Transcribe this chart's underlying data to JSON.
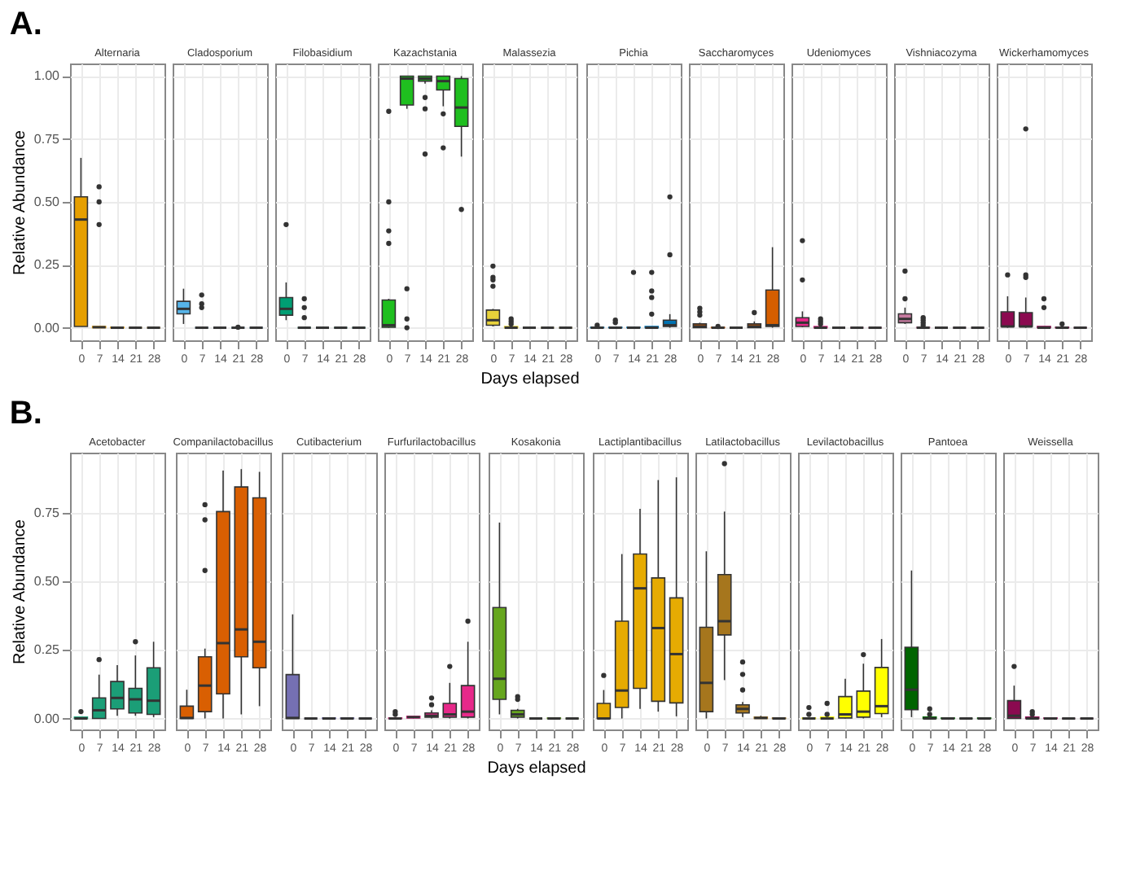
{
  "chart_data": [
    {
      "type": "box",
      "title": "Alternaria",
      "annotations": [
        "A."
      ],
      "ylabel": "Relative Abundance",
      "categories": [
        "0",
        "7",
        "14",
        "21",
        "28"
      ],
      "ylim": [
        -0.05,
        1.05
      ],
      "yticks": [
        {
          "value": 0,
          "label": "0.00"
        },
        {
          "value": 0.25,
          "label": "0.25"
        },
        {
          "value": 0.5,
          "label": "0.50"
        },
        {
          "value": 0.75,
          "label": "0.75"
        },
        {
          "value": 1,
          "label": "1.00"
        }
      ],
      "grid": true,
      "series": [
        {
          "color": "#e69f00",
          "boxes": [
            {
              "low": 0.005,
              "q1": 0.005,
              "median": 0.43,
              "q3": 0.52,
              "high": 0.675
            },
            {
              "low": 0,
              "q1": 0,
              "median": 0.002,
              "q3": 0.005,
              "high": 0.005,
              "outliers": [
                0.56,
                0.5,
                0.41
              ]
            },
            {
              "low": 0,
              "q1": 0,
              "median": 0,
              "q3": 0.002,
              "high": 0.002
            },
            {
              "low": 0,
              "q1": 0,
              "median": 0,
              "q3": 0,
              "high": 0
            },
            {
              "low": 0,
              "q1": 0,
              "median": 0,
              "q3": 0,
              "high": 0
            }
          ]
        }
      ]
    },
    {
      "type": "box",
      "title": "Cladosporium",
      "tick_labels": "x",
      "categories": [
        "0",
        "7",
        "14",
        "21",
        "28"
      ],
      "ylim": [
        -0.05,
        1.05
      ],
      "grid": true,
      "series": [
        {
          "color": "#56b4e9",
          "boxes": [
            {
              "low": 0.015,
              "q1": 0.055,
              "median": 0.075,
              "q3": 0.105,
              "high": 0.155
            },
            {
              "low": 0,
              "q1": 0,
              "median": 0,
              "q3": 0,
              "high": 0,
              "outliers": [
                0.13,
                0.095,
                0.08
              ]
            },
            {
              "low": 0,
              "q1": 0,
              "median": 0,
              "q3": 0,
              "high": 0
            },
            {
              "low": 0,
              "q1": 0,
              "median": 0,
              "q3": 0,
              "high": 0,
              "outliers": [
                0.002
              ]
            },
            {
              "low": 0,
              "q1": 0,
              "median": 0,
              "q3": 0,
              "high": 0
            }
          ]
        }
      ]
    },
    {
      "type": "box",
      "title": "Filobasidium",
      "tick_labels": "x",
      "categories": [
        "0",
        "7",
        "14",
        "21",
        "28"
      ],
      "ylim": [
        -0.05,
        1.05
      ],
      "grid": true,
      "series": [
        {
          "color": "#009e73",
          "boxes": [
            {
              "low": 0.03,
              "q1": 0.05,
              "median": 0.075,
              "q3": 0.12,
              "high": 0.18,
              "outliers": [
                0.41
              ]
            },
            {
              "low": 0,
              "q1": 0,
              "median": 0,
              "q3": 0,
              "high": 0,
              "outliers": [
                0.115,
                0.08,
                0.04
              ]
            },
            {
              "low": 0,
              "q1": 0,
              "median": 0,
              "q3": 0,
              "high": 0
            },
            {
              "low": 0,
              "q1": 0,
              "median": 0,
              "q3": 0,
              "high": 0
            },
            {
              "low": 0,
              "q1": 0,
              "median": 0,
              "q3": 0,
              "high": 0
            }
          ]
        }
      ]
    },
    {
      "type": "box",
      "title": "Kazachstania",
      "tick_labels": "x",
      "categories": [
        "0",
        "7",
        "14",
        "21",
        "28"
      ],
      "ylim": [
        -0.05,
        1.05
      ],
      "grid": true,
      "series": [
        {
          "color": "#1fbf1f",
          "boxes": [
            {
              "low": 0,
              "q1": 0.002,
              "median": 0.01,
              "q3": 0.11,
              "high": 0.115,
              "outliers": [
                0.86,
                0.5,
                0.385,
                0.335
              ]
            },
            {
              "low": 0.87,
              "q1": 0.885,
              "median": 0.99,
              "q3": 1.0,
              "high": 1.0,
              "outliers": [
                0.155,
                0.035,
                0.0
              ]
            },
            {
              "low": 0.97,
              "q1": 0.98,
              "median": 0.99,
              "q3": 1.0,
              "high": 1.0,
              "outliers": [
                0.915,
                0.87,
                0.69
              ]
            },
            {
              "low": 0.88,
              "q1": 0.945,
              "median": 0.98,
              "q3": 1.0,
              "high": 1.0,
              "outliers": [
                0.85,
                0.715
              ]
            },
            {
              "low": 0.68,
              "q1": 0.8,
              "median": 0.875,
              "q3": 0.99,
              "high": 1.0,
              "outliers": [
                0.47
              ]
            }
          ]
        }
      ]
    },
    {
      "type": "box",
      "title": "Malassezia",
      "xlabel": "Days elapsed",
      "tick_labels": "x",
      "categories": [
        "0",
        "7",
        "14",
        "21",
        "28"
      ],
      "ylim": [
        -0.05,
        1.05
      ],
      "grid": true,
      "series": [
        {
          "color": "#e8d23a",
          "boxes": [
            {
              "low": 0.005,
              "q1": 0.01,
              "median": 0.03,
              "q3": 0.07,
              "high": 0.075,
              "outliers": [
                0.245,
                0.2,
                0.19,
                0.165
              ]
            },
            {
              "low": 0,
              "q1": 0,
              "median": 0,
              "q3": 0.005,
              "high": 0.005,
              "outliers": [
                0.035,
                0.025,
                0.015
              ]
            },
            {
              "low": 0,
              "q1": 0,
              "median": 0,
              "q3": 0,
              "high": 0
            },
            {
              "low": 0,
              "q1": 0,
              "median": 0,
              "q3": 0,
              "high": 0
            },
            {
              "low": 0,
              "q1": 0,
              "median": 0,
              "q3": 0,
              "high": 0
            }
          ]
        }
      ]
    },
    {
      "type": "box",
      "title": "Pichia",
      "tick_labels": "x",
      "categories": [
        "0",
        "7",
        "14",
        "21",
        "28"
      ],
      "ylim": [
        -0.05,
        1.05
      ],
      "grid": true,
      "series": [
        {
          "color": "#0072b2",
          "boxes": [
            {
              "low": 0,
              "q1": 0,
              "median": 0,
              "q3": 0.002,
              "high": 0.002,
              "outliers": [
                0.01
              ]
            },
            {
              "low": 0,
              "q1": 0,
              "median": 0,
              "q3": 0.002,
              "high": 0.002,
              "outliers": [
                0.03,
                0.02
              ]
            },
            {
              "low": 0,
              "q1": 0,
              "median": 0,
              "q3": 0.002,
              "high": 0.002,
              "outliers": [
                0.22
              ]
            },
            {
              "low": 0,
              "q1": 0,
              "median": 0,
              "q3": 0.005,
              "high": 0.005,
              "outliers": [
                0.22,
                0.146,
                0.12,
                0.054
              ]
            },
            {
              "low": 0,
              "q1": 0.005,
              "median": 0.01,
              "q3": 0.03,
              "high": 0.054,
              "outliers": [
                0.52,
                0.29
              ]
            }
          ]
        }
      ]
    },
    {
      "type": "box",
      "title": "Saccharomyces",
      "tick_labels": "x",
      "categories": [
        "0",
        "7",
        "14",
        "21",
        "28"
      ],
      "ylim": [
        -0.05,
        1.05
      ],
      "grid": true,
      "series": [
        {
          "color": "#d55e00",
          "boxes": [
            {
              "low": 0,
              "q1": 0,
              "median": 0.005,
              "q3": 0.015,
              "high": 0.02,
              "outliers": [
                0.077,
                0.063,
                0.05
              ]
            },
            {
              "low": 0,
              "q1": 0,
              "median": 0,
              "q3": 0.002,
              "high": 0.002,
              "outliers": [
                0.005
              ]
            },
            {
              "low": 0,
              "q1": 0,
              "median": 0,
              "q3": 0,
              "high": 0
            },
            {
              "low": 0,
              "q1": 0,
              "median": 0.005,
              "q3": 0.015,
              "high": 0.025,
              "outliers": [
                0.06
              ]
            },
            {
              "low": 0,
              "q1": 0.005,
              "median": 0.01,
              "q3": 0.15,
              "high": 0.32
            }
          ]
        }
      ]
    },
    {
      "type": "box",
      "title": "Udeniomyces",
      "tick_labels": "x",
      "categories": [
        "0",
        "7",
        "14",
        "21",
        "28"
      ],
      "ylim": [
        -0.05,
        1.05
      ],
      "grid": true,
      "series": [
        {
          "color": "#e7298a",
          "boxes": [
            {
              "low": 0.002,
              "q1": 0.005,
              "median": 0.02,
              "q3": 0.04,
              "high": 0.065,
              "outliers": [
                0.346,
                0.19
              ]
            },
            {
              "low": 0,
              "q1": 0,
              "median": 0,
              "q3": 0.005,
              "high": 0.005,
              "outliers": [
                0.035,
                0.025,
                0.015
              ]
            },
            {
              "low": 0,
              "q1": 0,
              "median": 0,
              "q3": 0,
              "high": 0
            },
            {
              "low": 0,
              "q1": 0,
              "median": 0,
              "q3": 0,
              "high": 0
            },
            {
              "low": 0,
              "q1": 0,
              "median": 0,
              "q3": 0,
              "high": 0
            }
          ]
        }
      ]
    },
    {
      "type": "box",
      "title": "Vishniacozyma",
      "tick_labels": "x",
      "categories": [
        "0",
        "7",
        "14",
        "21",
        "28"
      ],
      "ylim": [
        -0.05,
        1.05
      ],
      "grid": true,
      "series": [
        {
          "color": "#c77ba0",
          "boxes": [
            {
              "low": 0.015,
              "q1": 0.02,
              "median": 0.035,
              "q3": 0.055,
              "high": 0.08,
              "outliers": [
                0.225,
                0.115
              ]
            },
            {
              "low": 0,
              "q1": 0,
              "median": 0,
              "q3": 0.002,
              "high": 0.002,
              "outliers": [
                0.04,
                0.03,
                0.02,
                0.01
              ]
            },
            {
              "low": 0,
              "q1": 0,
              "median": 0,
              "q3": 0,
              "high": 0
            },
            {
              "low": 0,
              "q1": 0,
              "median": 0,
              "q3": 0,
              "high": 0
            },
            {
              "low": 0,
              "q1": 0,
              "median": 0,
              "q3": 0,
              "high": 0
            }
          ]
        }
      ]
    },
    {
      "type": "box",
      "title": "Wickerhamomyces",
      "tick_labels": "x",
      "categories": [
        "0",
        "7",
        "14",
        "21",
        "28"
      ],
      "ylim": [
        -0.05,
        1.05
      ],
      "grid": true,
      "series": [
        {
          "color": "#8b0a50",
          "boxes": [
            {
              "low": 0,
              "q1": 0.005,
              "median": 0.005,
              "q3": 0.063,
              "high": 0.125,
              "outliers": [
                0.21
              ]
            },
            {
              "low": 0,
              "q1": 0.005,
              "median": 0.005,
              "q3": 0.06,
              "high": 0.12,
              "outliers": [
                0.79,
                0.21,
                0.2
              ]
            },
            {
              "low": 0,
              "q1": 0,
              "median": 0,
              "q3": 0.005,
              "high": 0.005,
              "outliers": [
                0.115,
                0.08
              ]
            },
            {
              "low": 0,
              "q1": 0,
              "median": 0,
              "q3": 0.002,
              "high": 0.002,
              "outliers": [
                0.015
              ]
            },
            {
              "low": 0,
              "q1": 0,
              "median": 0,
              "q3": 0,
              "high": 0
            }
          ]
        }
      ]
    },
    {
      "type": "box",
      "title": "Acetobacter",
      "annotations": [
        "B."
      ],
      "ylabel": "Relative Abundance",
      "categories": [
        "0",
        "7",
        "14",
        "21",
        "28"
      ],
      "ylim": [
        -0.04,
        0.97
      ],
      "yticks": [
        {
          "value": 0,
          "label": "0.00"
        },
        {
          "value": 0.25,
          "label": "0.25"
        },
        {
          "value": 0.5,
          "label": "0.50"
        },
        {
          "value": 0.75,
          "label": "0.75"
        }
      ],
      "grid": true,
      "series": [
        {
          "color": "#1b9e77",
          "boxes": [
            {
              "low": 0,
              "q1": 0,
              "median": 0,
              "q3": 0.005,
              "high": 0.005,
              "outliers": [
                0.025
              ]
            },
            {
              "low": 0,
              "q1": 0,
              "median": 0.03,
              "q3": 0.075,
              "high": 0.16,
              "outliers": [
                0.215
              ]
            },
            {
              "low": 0.01,
              "q1": 0.035,
              "median": 0.075,
              "q3": 0.135,
              "high": 0.195
            },
            {
              "low": 0.01,
              "q1": 0.02,
              "median": 0.07,
              "q3": 0.11,
              "high": 0.23,
              "outliers": [
                0.28
              ]
            },
            {
              "low": 0.005,
              "q1": 0.015,
              "median": 0.065,
              "q3": 0.185,
              "high": 0.28
            }
          ]
        }
      ]
    },
    {
      "type": "box",
      "title": "Companilactobacillus",
      "tick_labels": "x",
      "categories": [
        "0",
        "7",
        "14",
        "21",
        "28"
      ],
      "ylim": [
        -0.04,
        0.97
      ],
      "grid": true,
      "series": [
        {
          "color": "#d95f02",
          "boxes": [
            {
              "low": 0,
              "q1": 0,
              "median": 0.002,
              "q3": 0.045,
              "high": 0.105
            },
            {
              "low": 0,
              "q1": 0.025,
              "median": 0.12,
              "q3": 0.225,
              "high": 0.255,
              "outliers": [
                0.78,
                0.725,
                0.54
              ]
            },
            {
              "low": 0,
              "q1": 0.09,
              "median": 0.275,
              "q3": 0.755,
              "high": 0.905
            },
            {
              "low": 0.015,
              "q1": 0.225,
              "median": 0.325,
              "q3": 0.845,
              "high": 0.91
            },
            {
              "low": 0.045,
              "q1": 0.185,
              "median": 0.28,
              "q3": 0.805,
              "high": 0.9
            }
          ]
        }
      ]
    },
    {
      "type": "box",
      "title": "Cutibacterium",
      "tick_labels": "x",
      "categories": [
        "0",
        "7",
        "14",
        "21",
        "28"
      ],
      "ylim": [
        -0.04,
        0.97
      ],
      "grid": true,
      "series": [
        {
          "color": "#7570b3",
          "boxes": [
            {
              "low": 0,
              "q1": 0,
              "median": 0.002,
              "q3": 0.16,
              "high": 0.38
            },
            {
              "low": 0,
              "q1": 0,
              "median": 0,
              "q3": 0,
              "high": 0
            },
            {
              "low": 0,
              "q1": 0,
              "median": 0,
              "q3": 0.002,
              "high": 0.002
            },
            {
              "low": 0,
              "q1": 0,
              "median": 0,
              "q3": 0.002,
              "high": 0.002
            },
            {
              "low": 0,
              "q1": 0,
              "median": 0,
              "q3": 0,
              "high": 0
            }
          ]
        }
      ]
    },
    {
      "type": "box",
      "title": "Furfurilactobacillus",
      "tick_labels": "x",
      "categories": [
        "0",
        "7",
        "14",
        "21",
        "28"
      ],
      "ylim": [
        -0.04,
        0.97
      ],
      "grid": true,
      "series": [
        {
          "color": "#e7298a",
          "boxes": [
            {
              "low": 0,
              "q1": 0,
              "median": 0,
              "q3": 0.002,
              "high": 0.002,
              "outliers": [
                0.025,
                0.015
              ]
            },
            {
              "low": 0,
              "q1": 0.002,
              "median": 0.005,
              "q3": 0.008,
              "high": 0.01
            },
            {
              "low": 0,
              "q1": 0.005,
              "median": 0.01,
              "q3": 0.02,
              "high": 0.03,
              "outliers": [
                0.075,
                0.05
              ]
            },
            {
              "low": 0,
              "q1": 0.005,
              "median": 0.015,
              "q3": 0.055,
              "high": 0.13,
              "outliers": [
                0.19
              ]
            },
            {
              "low": 0,
              "q1": 0.005,
              "median": 0.025,
              "q3": 0.12,
              "high": 0.28,
              "outliers": [
                0.355
              ]
            }
          ]
        }
      ]
    },
    {
      "type": "box",
      "title": "Kosakonia",
      "xlabel": "Days elapsed",
      "tick_labels": "x",
      "categories": [
        "0",
        "7",
        "14",
        "21",
        "28"
      ],
      "ylim": [
        -0.04,
        0.97
      ],
      "grid": true,
      "series": [
        {
          "color": "#66a61e",
          "boxes": [
            {
              "low": 0.015,
              "q1": 0.07,
              "median": 0.145,
              "q3": 0.405,
              "high": 0.715
            },
            {
              "low": 0,
              "q1": 0.005,
              "median": 0.015,
              "q3": 0.03,
              "high": 0.035,
              "outliers": [
                0.08,
                0.07
              ]
            },
            {
              "low": 0,
              "q1": 0,
              "median": 0,
              "q3": 0,
              "high": 0
            },
            {
              "low": 0,
              "q1": 0,
              "median": 0,
              "q3": 0.002,
              "high": 0.002
            },
            {
              "low": 0,
              "q1": 0,
              "median": 0,
              "q3": 0,
              "high": 0
            }
          ]
        }
      ]
    },
    {
      "type": "box",
      "title": "Lactiplantibacillus",
      "tick_labels": "x",
      "categories": [
        "0",
        "7",
        "14",
        "21",
        "28"
      ],
      "ylim": [
        -0.04,
        0.97
      ],
      "grid": true,
      "series": [
        {
          "color": "#e6ab02",
          "boxes": [
            {
              "low": 0,
              "q1": 0,
              "median": 0,
              "q3": 0.055,
              "high": 0.104,
              "outliers": [
                0.157
              ]
            },
            {
              "low": 0,
              "q1": 0.04,
              "median": 0.102,
              "q3": 0.355,
              "high": 0.6
            },
            {
              "low": 0.035,
              "q1": 0.11,
              "median": 0.475,
              "q3": 0.6,
              "high": 0.765
            },
            {
              "low": 0.025,
              "q1": 0.063,
              "median": 0.33,
              "q3": 0.513,
              "high": 0.87
            },
            {
              "low": 0.008,
              "q1": 0.057,
              "median": 0.235,
              "q3": 0.44,
              "high": 0.88
            }
          ]
        }
      ]
    },
    {
      "type": "box",
      "title": "Latilactobacillus",
      "tick_labels": "x",
      "categories": [
        "0",
        "7",
        "14",
        "21",
        "28"
      ],
      "ylim": [
        -0.04,
        0.97
      ],
      "grid": true,
      "series": [
        {
          "color": "#a6761d",
          "boxes": [
            {
              "low": 0,
              "q1": 0.025,
              "median": 0.13,
              "q3": 0.333,
              "high": 0.61
            },
            {
              "low": 0.14,
              "q1": 0.305,
              "median": 0.355,
              "q3": 0.525,
              "high": 0.755,
              "outliers": [
                0.93
              ]
            },
            {
              "low": 0.005,
              "q1": 0.02,
              "median": 0.035,
              "q3": 0.05,
              "high": 0.06,
              "outliers": [
                0.206,
                0.161,
                0.104
              ]
            },
            {
              "low": 0,
              "q1": 0,
              "median": 0.002,
              "q3": 0.005,
              "high": 0.01
            },
            {
              "low": 0,
              "q1": 0,
              "median": 0,
              "q3": 0.002,
              "high": 0.002
            }
          ]
        }
      ]
    },
    {
      "type": "box",
      "title": "Levilactobacillus",
      "tick_labels": "x",
      "categories": [
        "0",
        "7",
        "14",
        "21",
        "28"
      ],
      "ylim": [
        -0.04,
        0.97
      ],
      "grid": true,
      "series": [
        {
          "color": "#ffff00",
          "boxes": [
            {
              "low": 0,
              "q1": 0,
              "median": 0,
              "q3": 0.002,
              "high": 0.002,
              "outliers": [
                0.04,
                0.015
              ]
            },
            {
              "low": 0,
              "q1": 0,
              "median": 0,
              "q3": 0.005,
              "high": 0.005,
              "outliers": [
                0.055,
                0.015
              ]
            },
            {
              "low": 0,
              "q1": 0.002,
              "median": 0.015,
              "q3": 0.08,
              "high": 0.145
            },
            {
              "low": 0,
              "q1": 0.005,
              "median": 0.025,
              "q3": 0.1,
              "high": 0.2,
              "outliers": [
                0.233
              ]
            },
            {
              "low": 0.005,
              "q1": 0.018,
              "median": 0.045,
              "q3": 0.186,
              "high": 0.29
            }
          ]
        }
      ]
    },
    {
      "type": "box",
      "title": "Pantoea",
      "tick_labels": "x",
      "categories": [
        "0",
        "7",
        "14",
        "21",
        "28"
      ],
      "ylim": [
        -0.04,
        0.97
      ],
      "grid": true,
      "series": [
        {
          "color": "#006400",
          "boxes": [
            {
              "low": 0.005,
              "q1": 0.032,
              "median": 0.105,
              "q3": 0.26,
              "high": 0.54
            },
            {
              "low": 0,
              "q1": 0,
              "median": 0,
              "q3": 0.005,
              "high": 0.005,
              "outliers": [
                0.035,
                0.015
              ]
            },
            {
              "low": 0,
              "q1": 0,
              "median": 0,
              "q3": 0.002,
              "high": 0.002
            },
            {
              "low": 0,
              "q1": 0,
              "median": 0,
              "q3": 0,
              "high": 0
            },
            {
              "low": 0,
              "q1": 0,
              "median": 0,
              "q3": 0.002,
              "high": 0.002
            }
          ]
        }
      ]
    },
    {
      "type": "box",
      "title": "Weissella",
      "tick_labels": "x",
      "categories": [
        "0",
        "7",
        "14",
        "21",
        "28"
      ],
      "ylim": [
        -0.04,
        0.97
      ],
      "grid": true,
      "series": [
        {
          "color": "#8b0a50",
          "boxes": [
            {
              "low": 0,
              "q1": 0,
              "median": 0.01,
              "q3": 0.065,
              "high": 0.12,
              "outliers": [
                0.19
              ]
            },
            {
              "low": 0,
              "q1": 0,
              "median": 0,
              "q3": 0.005,
              "high": 0.005,
              "outliers": [
                0.025,
                0.015
              ]
            },
            {
              "low": 0,
              "q1": 0,
              "median": 0,
              "q3": 0.002,
              "high": 0.002
            },
            {
              "low": 0,
              "q1": 0,
              "median": 0,
              "q3": 0,
              "high": 0
            },
            {
              "low": 0,
              "q1": 0,
              "median": 0,
              "q3": 0,
              "high": 0
            }
          ]
        }
      ]
    }
  ]
}
